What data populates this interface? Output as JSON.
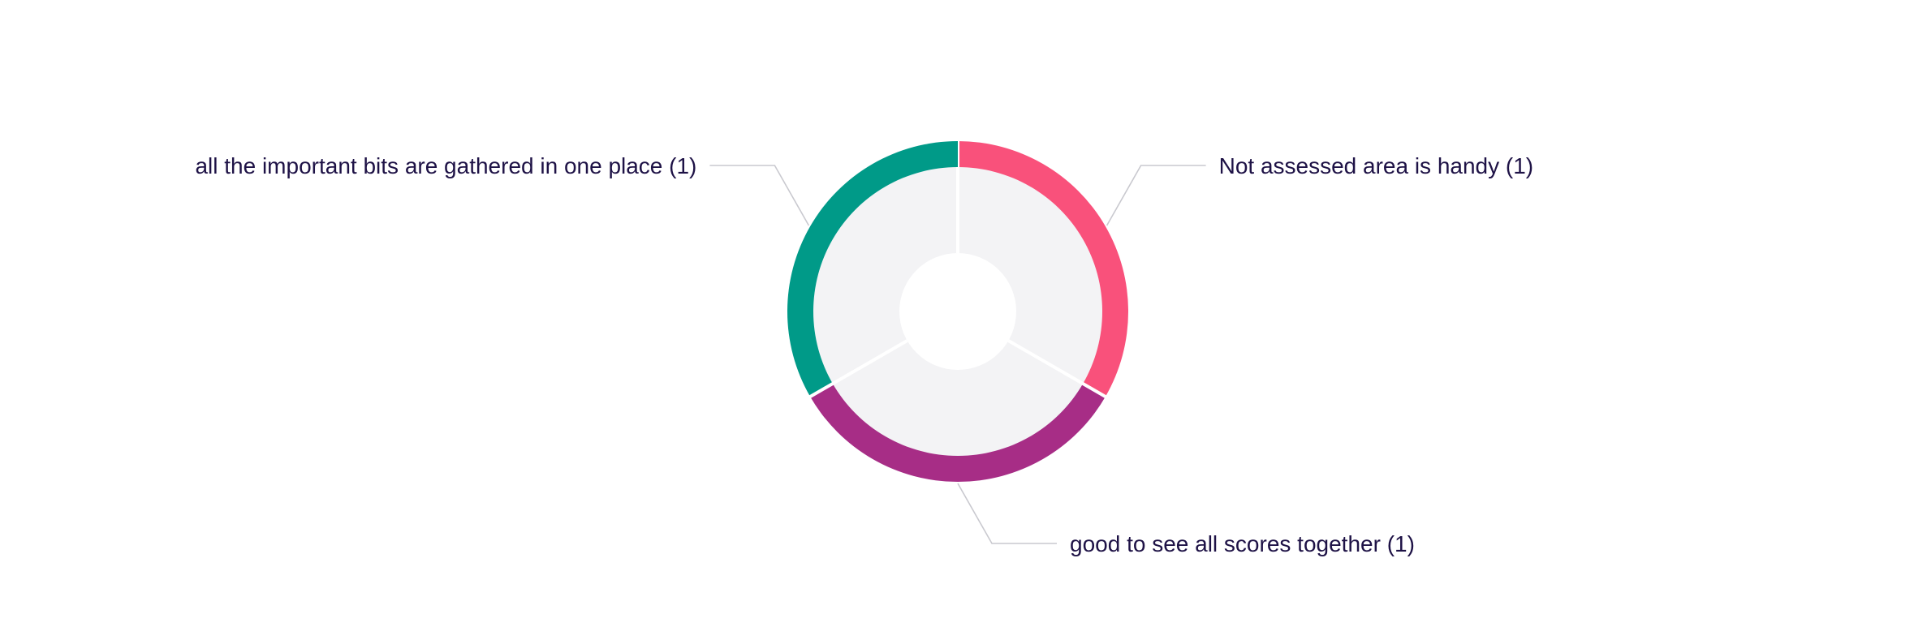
{
  "chart_data": {
    "type": "pie",
    "title": "",
    "slices": [
      {
        "label": "Not assessed area is handy (1)",
        "value": 1,
        "color": "#F9517B"
      },
      {
        "label": "good to see all scores together (1)",
        "value": 1,
        "color": "#A72D86"
      },
      {
        "label": "all the important bits are gathered in one place (1)",
        "value": 1,
        "color": "#009A88"
      }
    ],
    "inner_fill_color": "#F3F3F5",
    "label_color": "#1E1246",
    "connector_color": "#C9C9CF"
  }
}
